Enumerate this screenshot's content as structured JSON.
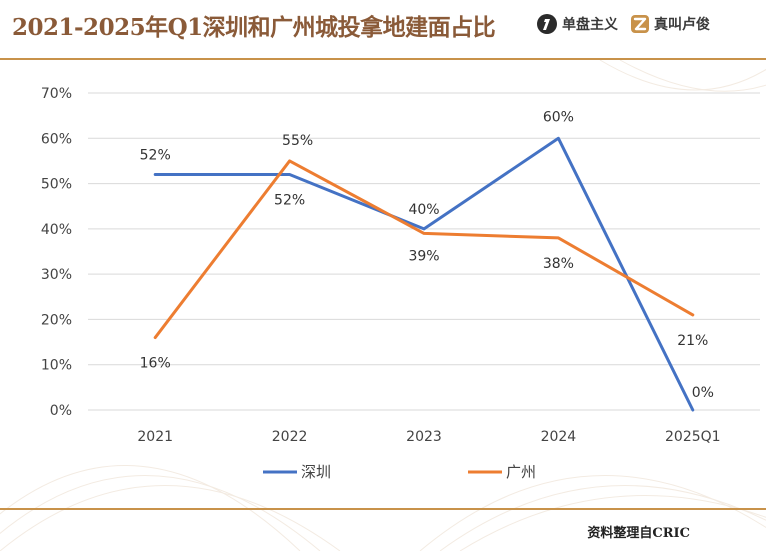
{
  "header": {
    "title": "2021-2025年Q1深圳和广州城投拿地建面占比",
    "brand1": "单盘主义",
    "brand2": "真叫卢俊"
  },
  "footer": {
    "source": "资料整理自CRIC"
  },
  "colors": {
    "shenzhen": "#4472C4",
    "guangzhou": "#ED7D31",
    "title": "#8a5a38",
    "rule": "#c8924a"
  },
  "chart_data": {
    "type": "line",
    "title": "",
    "xlabel": "",
    "ylabel": "",
    "categories": [
      "2021",
      "2022",
      "2023",
      "2024",
      "2025Q1"
    ],
    "ylim": [
      0,
      70
    ],
    "yticks": [
      0,
      10,
      20,
      30,
      40,
      50,
      60,
      70
    ],
    "ytick_labels": [
      "0%",
      "10%",
      "20%",
      "30%",
      "40%",
      "50%",
      "60%",
      "70%"
    ],
    "grid": true,
    "legend": "bottom-center",
    "series": [
      {
        "name": "深圳",
        "color": "#4472C4",
        "values": [
          52,
          52,
          40,
          60,
          0
        ],
        "labels": [
          "52%",
          "52%",
          "40%",
          "60%",
          "0%"
        ]
      },
      {
        "name": "广州",
        "color": "#ED7D31",
        "values": [
          16,
          55,
          39,
          38,
          21
        ],
        "labels": [
          "16%",
          "55%",
          "39%",
          "38%",
          "21%"
        ]
      }
    ]
  }
}
